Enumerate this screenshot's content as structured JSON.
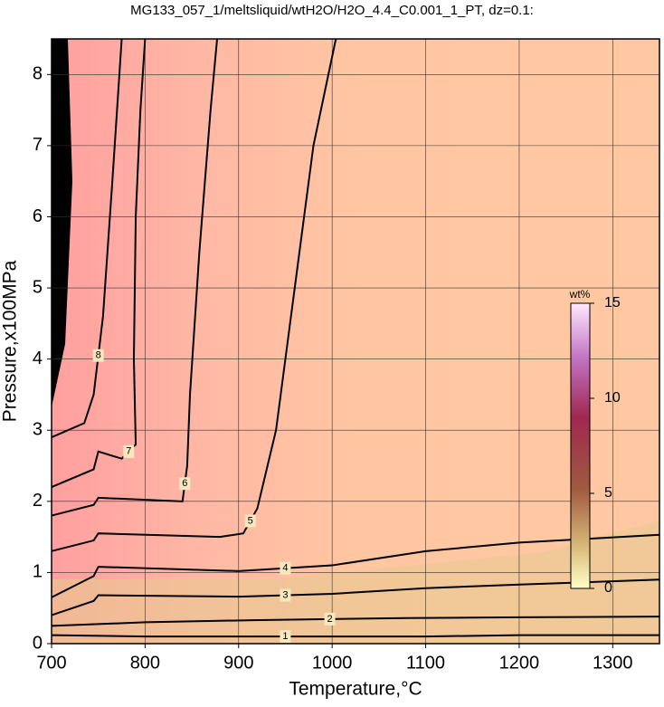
{
  "chart_data": {
    "type": "contour",
    "title": "MG133_057_1/meltsliquid/wtH2O/H2O_4.4_C0.001_1_PT, dz=0.1:",
    "xlabel": "Temperature,°C",
    "ylabel": "Pressure,x100MPa",
    "xlim": [
      700,
      1350
    ],
    "ylim": [
      0,
      8.5
    ],
    "xticks": [
      700,
      800,
      900,
      1000,
      1100,
      1200,
      1300
    ],
    "yticks": [
      0,
      1,
      2,
      3,
      4,
      5,
      6,
      7,
      8
    ],
    "grid": true,
    "colorbar": {
      "label": "wt%",
      "lim": [
        0,
        15
      ],
      "ticks": [
        0,
        5,
        10,
        15
      ]
    },
    "contours": [
      {
        "level": 1,
        "x": [
          700,
          800,
          900,
          1000,
          1100,
          1200,
          1350
        ],
        "y": [
          0.12,
          0.1,
          0.1,
          0.1,
          0.1,
          0.12,
          0.12
        ]
      },
      {
        "level": 2,
        "x": [
          700,
          800,
          915,
          1080,
          1200,
          1350
        ],
        "y": [
          0.25,
          0.3,
          0.33,
          0.36,
          0.37,
          0.38
        ]
      },
      {
        "level": 3,
        "x": [
          700,
          745,
          750,
          900,
          1000,
          1100,
          1200,
          1350
        ],
        "y": [
          0.4,
          0.6,
          0.68,
          0.66,
          0.7,
          0.78,
          0.83,
          0.9
        ]
      },
      {
        "level": 4,
        "x": [
          700,
          745,
          750,
          900,
          1000,
          1100,
          1200,
          1350
        ],
        "y": [
          0.65,
          0.95,
          1.08,
          1.02,
          1.1,
          1.3,
          1.42,
          1.53
        ]
      },
      {
        "level": 5,
        "x": [
          700,
          745,
          750,
          880,
          905,
          920,
          940,
          960,
          980,
          1004
        ],
        "y": [
          1.3,
          1.45,
          1.55,
          1.5,
          1.55,
          1.9,
          3.0,
          5.0,
          7.0,
          8.5
        ]
      },
      {
        "level": 6,
        "x": [
          700,
          745,
          750,
          840,
          845,
          848,
          858,
          870,
          877
        ],
        "y": [
          1.8,
          1.95,
          2.05,
          2.0,
          2.5,
          3.5,
          5.5,
          7.5,
          8.5
        ]
      },
      {
        "level": 7,
        "x": [
          700,
          745,
          750,
          775,
          790,
          788,
          790,
          795,
          800
        ],
        "y": [
          2.2,
          2.45,
          2.7,
          2.6,
          2.8,
          4.0,
          6.0,
          7.5,
          8.5
        ]
      },
      {
        "level": 8,
        "x": [
          700,
          735,
          745,
          755,
          765,
          775
        ],
        "y": [
          2.9,
          3.1,
          3.5,
          4.6,
          6.5,
          8.5
        ]
      }
    ]
  }
}
